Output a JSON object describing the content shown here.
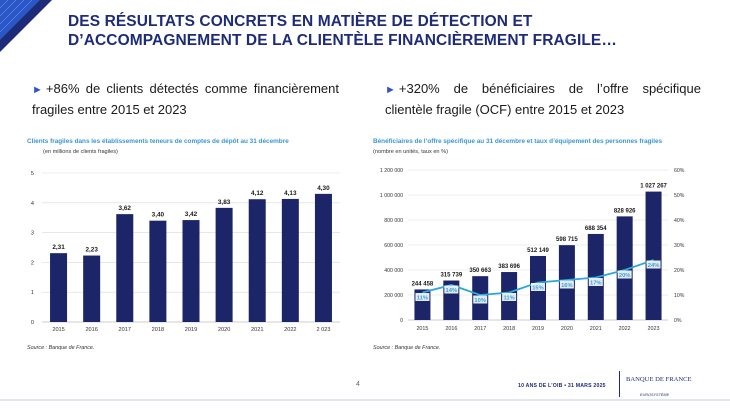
{
  "title": {
    "line1": "DES RÉSULTATS CONCRETS EN MATIÈRE DE DÉTECTION ET",
    "line2": "D’ACCOMPAGNEMENT DE LA CLIENTÈLE FINANCIÈREMENT FRAGILE…"
  },
  "bullets": [
    {
      "marker": "►",
      "text": "+86% de clients détectés comme financièrement fragiles entre 2015 et 2023"
    },
    {
      "marker": "►",
      "text": "+320% de bénéficiaires de l’offre spécifique clientèle fragile (OCF) entre 2015 et 2023"
    }
  ],
  "chart_data": [
    {
      "type": "bar",
      "title": "Clients fragiles dans les établissements teneurs de comptes de dépôt au 31 décembre",
      "subtitle": "(en millions de clients fragiles)",
      "categories": [
        "2015",
        "2016",
        "2017",
        "2018",
        "2019",
        "2020",
        "2021",
        "2022",
        "2 023"
      ],
      "values": [
        2.31,
        2.23,
        3.62,
        3.4,
        3.42,
        3.83,
        4.12,
        4.13,
        4.3
      ],
      "value_labels": [
        "2,31",
        "2,23",
        "3,62",
        "3,40",
        "3,42",
        "3,83",
        "4,12",
        "4,13",
        "4,30"
      ],
      "ylim": [
        0,
        5
      ],
      "yticks": [
        "0",
        "1",
        "2",
        "3",
        "4",
        "5"
      ],
      "grid": true,
      "bar_color": "#1b2567",
      "source": "Source : Banque de France."
    },
    {
      "type": "bar+line",
      "title": "Bénéficiaires de l’offre spécifique au 31 décembre et taux d’équipement des personnes fragiles",
      "subtitle": "(nombre en unités, taux en %)",
      "categories": [
        "2015",
        "2016",
        "2017",
        "2018",
        "2019",
        "2020",
        "2021",
        "2022",
        "2023"
      ],
      "series": [
        {
          "name": "Bénéficiaires de l’offre spécifique",
          "type": "bar",
          "values": [
            244458,
            315739,
            350663,
            383696,
            512149,
            598715,
            688354,
            828926,
            1027267
          ],
          "labels": [
            "244 458",
            "315 739",
            "350 663",
            "383 696",
            "512 149",
            "598 715",
            "688 354",
            "828 926",
            "1 027 267"
          ],
          "color": "#1b2567"
        },
        {
          "name": "Taux d’équipement des personnes fragiles",
          "type": "line",
          "axis": "right",
          "values": [
            11,
            14,
            10,
            11,
            15,
            16,
            17,
            20,
            24
          ],
          "labels": [
            "11%",
            "14%",
            "10%",
            "11%",
            "15%",
            "16%",
            "17%",
            "20%",
            "24%"
          ],
          "color": "#2aa7dc"
        }
      ],
      "ylim_left": [
        0,
        1200000
      ],
      "yticks_left": [
        "0",
        "200 000",
        "400 000",
        "600 000",
        "800 000",
        "1 000 000",
        "1 200 000"
      ],
      "ylim_right": [
        0,
        60
      ],
      "yticks_right": [
        "0%",
        "10%",
        "20%",
        "30%",
        "40%",
        "50%",
        "60%"
      ],
      "grid": true,
      "source": "Source : Banque de France."
    }
  ],
  "footer": {
    "page": "4",
    "event": "10 ANS DE L’OIB • 31 MARS 2025",
    "brand": "BANQUE DE FRANCE",
    "brand_sub": "EUROSYSTÈME"
  },
  "colors": {
    "title": "#1e2b78",
    "accent": "#2a56c6",
    "chart_title": "#3a96d6",
    "bar": "#1b2567",
    "line": "#2aa7dc"
  }
}
